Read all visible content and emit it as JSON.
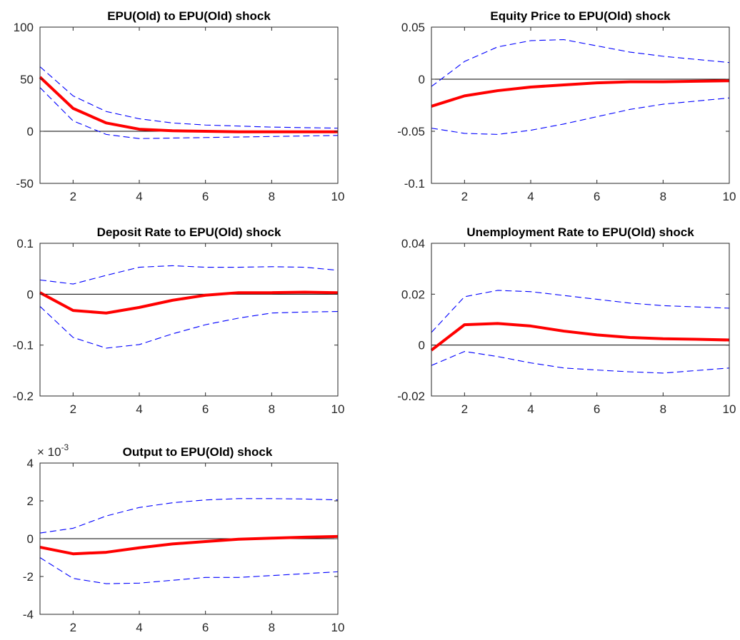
{
  "chart_data": [
    {
      "type": "line",
      "title": "EPU(Old) to EPU(Old) shock",
      "x": [
        1,
        2,
        3,
        4,
        5,
        6,
        7,
        8,
        9,
        10
      ],
      "xlim": [
        1,
        10
      ],
      "xticks": [
        2,
        4,
        6,
        8,
        10
      ],
      "ylim": [
        -50,
        100
      ],
      "yticks": [
        -50,
        0,
        50,
        100
      ],
      "ytick_labels": [
        "-50",
        "0",
        "50",
        "100"
      ],
      "zero_line": true,
      "series": [
        {
          "role": "response",
          "color": "#ff0000",
          "style": "solid",
          "values": [
            52,
            22,
            8,
            2,
            0.5,
            0,
            -0.5,
            -0.5,
            -0.5,
            -0.5
          ]
        },
        {
          "role": "upper",
          "color": "#0000ff",
          "style": "dashed",
          "values": [
            62,
            34,
            19,
            12,
            8,
            6,
            5,
            4,
            3.5,
            3
          ]
        },
        {
          "role": "lower",
          "color": "#0000ff",
          "style": "dashed",
          "values": [
            42,
            10,
            -3,
            -7,
            -6.5,
            -6,
            -5.5,
            -5,
            -4.5,
            -4
          ]
        }
      ]
    },
    {
      "type": "line",
      "title": "Equity Price to EPU(Old) shock",
      "x": [
        1,
        2,
        3,
        4,
        5,
        6,
        7,
        8,
        9,
        10
      ],
      "xlim": [
        1,
        10
      ],
      "xticks": [
        2,
        4,
        6,
        8,
        10
      ],
      "ylim": [
        -0.1,
        0.05
      ],
      "yticks": [
        -0.1,
        -0.05,
        0,
        0.05
      ],
      "ytick_labels": [
        "-0.1",
        "-0.05",
        "0",
        "0.05"
      ],
      "zero_line": true,
      "series": [
        {
          "role": "response",
          "color": "#ff0000",
          "style": "solid",
          "values": [
            -0.026,
            -0.016,
            -0.011,
            -0.0075,
            -0.0055,
            -0.0035,
            -0.0025,
            -0.0025,
            -0.002,
            -0.0015
          ]
        },
        {
          "role": "upper",
          "color": "#0000ff",
          "style": "dashed",
          "values": [
            -0.007,
            0.017,
            0.031,
            0.037,
            0.038,
            0.032,
            0.026,
            0.022,
            0.019,
            0.016
          ]
        },
        {
          "role": "lower",
          "color": "#0000ff",
          "style": "dashed",
          "values": [
            -0.047,
            -0.052,
            -0.053,
            -0.049,
            -0.043,
            -0.036,
            -0.029,
            -0.024,
            -0.021,
            -0.018
          ]
        }
      ]
    },
    {
      "type": "line",
      "title": "Deposit Rate to EPU(Old) shock",
      "x": [
        1,
        2,
        3,
        4,
        5,
        6,
        7,
        8,
        9,
        10
      ],
      "xlim": [
        1,
        10
      ],
      "xticks": [
        2,
        4,
        6,
        8,
        10
      ],
      "ylim": [
        -0.2,
        0.1
      ],
      "yticks": [
        -0.2,
        -0.1,
        0,
        0.1
      ],
      "ytick_labels": [
        "-0.2",
        "-0.1",
        "0",
        "0.1"
      ],
      "zero_line": true,
      "series": [
        {
          "role": "response",
          "color": "#ff0000",
          "style": "solid",
          "values": [
            0.003,
            -0.032,
            -0.037,
            -0.026,
            -0.012,
            -0.002,
            0.003,
            0.003,
            0.004,
            0.003
          ]
        },
        {
          "role": "upper",
          "color": "#0000ff",
          "style": "dashed",
          "values": [
            0.028,
            0.02,
            0.037,
            0.053,
            0.056,
            0.053,
            0.053,
            0.054,
            0.053,
            0.047
          ]
        },
        {
          "role": "lower",
          "color": "#0000ff",
          "style": "dashed",
          "values": [
            -0.024,
            -0.085,
            -0.106,
            -0.099,
            -0.078,
            -0.06,
            -0.047,
            -0.037,
            -0.035,
            -0.034
          ]
        }
      ]
    },
    {
      "type": "line",
      "title": "Unemployment Rate  to EPU(Old) shock",
      "x": [
        1,
        2,
        3,
        4,
        5,
        6,
        7,
        8,
        9,
        10
      ],
      "xlim": [
        1,
        10
      ],
      "xticks": [
        2,
        4,
        6,
        8,
        10
      ],
      "ylim": [
        -0.02,
        0.04
      ],
      "yticks": [
        -0.02,
        0,
        0.02,
        0.04
      ],
      "ytick_labels": [
        "-0.02",
        "0",
        "0.02",
        "0.04"
      ],
      "zero_line": true,
      "series": [
        {
          "role": "response",
          "color": "#ff0000",
          "style": "solid",
          "values": [
            -0.002,
            0.008,
            0.0085,
            0.0075,
            0.0055,
            0.004,
            0.003,
            0.0025,
            0.0023,
            0.002
          ]
        },
        {
          "role": "upper",
          "color": "#0000ff",
          "style": "dashed",
          "values": [
            0.005,
            0.019,
            0.0215,
            0.021,
            0.0195,
            0.018,
            0.0165,
            0.0155,
            0.015,
            0.0145
          ]
        },
        {
          "role": "lower",
          "color": "#0000ff",
          "style": "dashed",
          "values": [
            -0.008,
            -0.0025,
            -0.0045,
            -0.007,
            -0.009,
            -0.0098,
            -0.0105,
            -0.011,
            -0.01,
            -0.009
          ]
        }
      ]
    },
    {
      "type": "line",
      "title": "Output to EPU(Old) shock",
      "y_exponent": "-3",
      "x": [
        1,
        2,
        3,
        4,
        5,
        6,
        7,
        8,
        9,
        10
      ],
      "xlim": [
        1,
        10
      ],
      "xticks": [
        2,
        4,
        6,
        8,
        10
      ],
      "ylim": [
        -4,
        4
      ],
      "yticks": [
        -4,
        -2,
        0,
        2,
        4
      ],
      "ytick_labels": [
        "-4",
        "-2",
        "0",
        "2",
        "4"
      ],
      "zero_line": true,
      "series": [
        {
          "role": "response",
          "color": "#ff0000",
          "style": "solid",
          "values": [
            -0.45,
            -0.8,
            -0.72,
            -0.48,
            -0.28,
            -0.15,
            -0.03,
            0.03,
            0.08,
            0.12
          ]
        },
        {
          "role": "upper",
          "color": "#0000ff",
          "style": "dashed",
          "values": [
            0.3,
            0.55,
            1.2,
            1.65,
            1.9,
            2.05,
            2.12,
            2.12,
            2.1,
            2.05
          ]
        },
        {
          "role": "lower",
          "color": "#0000ff",
          "style": "dashed",
          "values": [
            -1.0,
            -2.1,
            -2.38,
            -2.35,
            -2.2,
            -2.05,
            -2.05,
            -1.95,
            -1.85,
            -1.75
          ]
        }
      ]
    }
  ]
}
